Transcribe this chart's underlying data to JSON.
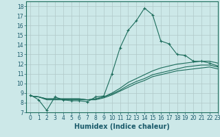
{
  "title": "",
  "xlabel": "Humidex (Indice chaleur)",
  "bg_color": "#cce8e8",
  "grid_color": "#b0c8c8",
  "line_color": "#1a6b5a",
  "xlim": [
    -0.5,
    23
  ],
  "ylim": [
    7,
    18.5
  ],
  "xticks": [
    0,
    1,
    2,
    3,
    4,
    5,
    6,
    7,
    8,
    9,
    10,
    11,
    12,
    13,
    14,
    15,
    16,
    17,
    18,
    19,
    20,
    21,
    22,
    23
  ],
  "yticks": [
    7,
    8,
    9,
    10,
    11,
    12,
    13,
    14,
    15,
    16,
    17,
    18
  ],
  "series": [
    {
      "x": [
        0,
        1,
        2,
        3,
        4,
        5,
        6,
        7,
        8,
        9,
        10,
        11,
        12,
        13,
        14,
        15,
        16,
        17,
        18,
        19,
        20,
        21,
        22,
        23
      ],
      "y": [
        8.8,
        8.3,
        7.2,
        8.6,
        8.3,
        8.2,
        8.2,
        8.1,
        8.6,
        8.7,
        11.0,
        13.7,
        15.5,
        16.5,
        17.8,
        17.1,
        14.4,
        14.1,
        13.0,
        12.9,
        12.3,
        12.3,
        12.1,
        11.8
      ],
      "marker": "+"
    },
    {
      "x": [
        0,
        1,
        2,
        3,
        4,
        5,
        6,
        7,
        8,
        9,
        10,
        11,
        12,
        13,
        14,
        15,
        16,
        17,
        18,
        19,
        20,
        21,
        22,
        23
      ],
      "y": [
        8.7,
        8.6,
        8.4,
        8.4,
        8.4,
        8.4,
        8.4,
        8.3,
        8.4,
        8.6,
        9.0,
        9.5,
        10.1,
        10.5,
        10.9,
        11.3,
        11.6,
        11.8,
        12.0,
        12.1,
        12.2,
        12.3,
        12.3,
        12.1
      ],
      "marker": null
    },
    {
      "x": [
        0,
        1,
        2,
        3,
        4,
        5,
        6,
        7,
        8,
        9,
        10,
        11,
        12,
        13,
        14,
        15,
        16,
        17,
        18,
        19,
        20,
        21,
        22,
        23
      ],
      "y": [
        8.7,
        8.6,
        8.4,
        8.4,
        8.4,
        8.4,
        8.4,
        8.3,
        8.4,
        8.6,
        8.9,
        9.3,
        9.8,
        10.2,
        10.5,
        10.9,
        11.1,
        11.3,
        11.5,
        11.7,
        11.8,
        11.9,
        11.9,
        11.7
      ],
      "marker": null
    },
    {
      "x": [
        0,
        1,
        2,
        3,
        4,
        5,
        6,
        7,
        8,
        9,
        10,
        11,
        12,
        13,
        14,
        15,
        16,
        17,
        18,
        19,
        20,
        21,
        22,
        23
      ],
      "y": [
        8.7,
        8.6,
        8.3,
        8.3,
        8.3,
        8.3,
        8.3,
        8.3,
        8.3,
        8.5,
        8.8,
        9.2,
        9.6,
        10.0,
        10.3,
        10.7,
        10.9,
        11.1,
        11.3,
        11.4,
        11.5,
        11.6,
        11.7,
        11.5
      ],
      "marker": null
    }
  ],
  "xlabel_color": "#1a5a6a",
  "xlabel_fontsize": 7,
  "tick_fontsize": 5.5,
  "tick_color": "#1a5a6a"
}
